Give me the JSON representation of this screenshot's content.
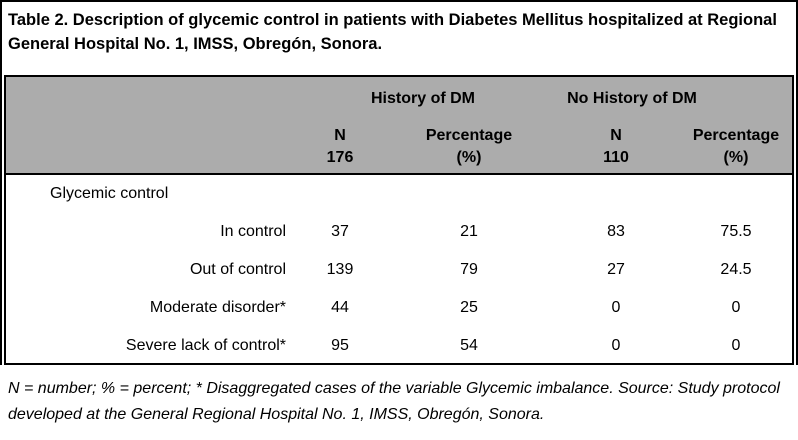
{
  "title": "Table 2. Description of glycemic control in patients with Diabetes Mellitus hospitalized at Regional General Hospital No. 1, IMSS, Obregón, Sonora.",
  "table": {
    "group_headers": [
      {
        "label": "History of DM"
      },
      {
        "label": "No History of DM"
      }
    ],
    "column_headers": [
      {
        "line1": "N",
        "line2": "176"
      },
      {
        "line1": "Percentage",
        "line2": "(%)"
      },
      {
        "line1": "N",
        "line2": "110"
      },
      {
        "line1": "Percentage",
        "line2": "(%)"
      }
    ],
    "section_label": "Glycemic control",
    "rows": [
      {
        "label": "In control",
        "values": [
          "37",
          "21",
          "83",
          "75.5"
        ]
      },
      {
        "label": "Out of control",
        "values": [
          "139",
          "79",
          "27",
          "24.5"
        ]
      },
      {
        "label": "Moderate disorder*",
        "values": [
          "44",
          "25",
          "0",
          "0"
        ]
      },
      {
        "label": "Severe lack of control*",
        "values": [
          "95",
          "54",
          "0",
          "0"
        ]
      }
    ]
  },
  "footnote": "N = number; % = percent; * Disaggregated cases of the variable Glycemic imbalance. Source: Study protocol developed at the General Regional Hospital No. 1, IMSS, Obregón, Sonora.",
  "colors": {
    "header_bg": "#ACACAC",
    "border": "#000000",
    "text": "#000000",
    "background": "#FFFFFF"
  }
}
